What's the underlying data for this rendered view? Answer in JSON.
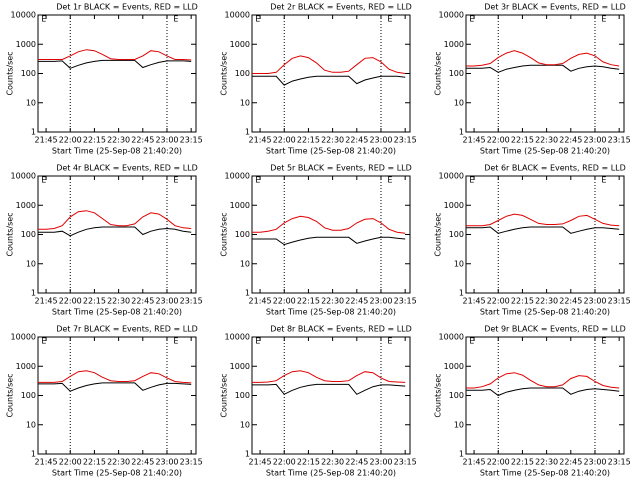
{
  "chart_data": [
    {
      "type": "line",
      "title": "Det 1r BLACK = Events, RED = LLD",
      "x_label": "Start Time (25-Sep-08 21:40:20)",
      "y_label": "Counts/sec",
      "log_y": true,
      "x": [
        "21:40",
        "21:45",
        "21:50",
        "21:55",
        "22:00",
        "22:05",
        "22:10",
        "22:15",
        "22:20",
        "22:25",
        "22:30",
        "22:35",
        "22:40",
        "22:45",
        "22:50",
        "22:55",
        "23:00",
        "23:05",
        "23:10",
        "23:15"
      ],
      "xlim": [
        "21:40",
        "23:18"
      ],
      "xticks": [
        "21:45",
        "22:00",
        "22:15",
        "22:30",
        "22:45",
        "23:00",
        "23:15"
      ],
      "ylim": [
        1,
        10000
      ],
      "yticks": [
        1,
        10,
        100,
        1000,
        10000
      ],
      "vlines": [
        "22:00",
        "23:00"
      ],
      "annotations": [
        {
          "text": "E",
          "x": "21:42"
        },
        {
          "text": "E",
          "x": "23:04"
        }
      ],
      "series": [
        {
          "color": "#000000",
          "values": [
            260,
            260,
            260,
            270,
            150,
            190,
            230,
            260,
            280,
            280,
            280,
            280,
            280,
            160,
            200,
            240,
            270,
            270,
            270,
            260
          ]
        },
        {
          "color": "#e00000",
          "values": [
            300,
            300,
            300,
            300,
            400,
            550,
            650,
            600,
            450,
            320,
            300,
            300,
            300,
            400,
            600,
            550,
            400,
            300,
            300,
            290
          ]
        }
      ]
    },
    {
      "type": "line",
      "title": "Det 2r BLACK = Events, RED = LLD",
      "x_label": "Start Time (25-Sep-08 21:40:20)",
      "y_label": "Counts/sec",
      "log_y": true,
      "x": [
        "21:40",
        "21:45",
        "21:50",
        "21:55",
        "22:00",
        "22:05",
        "22:10",
        "22:15",
        "22:20",
        "22:25",
        "22:30",
        "22:35",
        "22:40",
        "22:45",
        "22:50",
        "22:55",
        "23:00",
        "23:05",
        "23:10",
        "23:15"
      ],
      "xlim": [
        "21:40",
        "23:18"
      ],
      "xticks": [
        "21:45",
        "22:00",
        "22:15",
        "22:30",
        "22:45",
        "23:00",
        "23:15"
      ],
      "ylim": [
        1,
        10000
      ],
      "yticks": [
        1,
        10,
        100,
        1000,
        10000
      ],
      "vlines": [
        "22:00",
        "23:00"
      ],
      "annotations": [
        {
          "text": "E",
          "x": "21:42"
        },
        {
          "text": "E",
          "x": "23:04"
        }
      ],
      "series": [
        {
          "color": "#000000",
          "values": [
            80,
            80,
            80,
            80,
            40,
            55,
            65,
            75,
            80,
            80,
            80,
            80,
            80,
            45,
            60,
            70,
            80,
            80,
            80,
            75
          ]
        },
        {
          "color": "#e00000",
          "values": [
            100,
            100,
            100,
            110,
            200,
            330,
            400,
            350,
            230,
            130,
            110,
            110,
            120,
            200,
            330,
            350,
            250,
            140,
            110,
            100
          ]
        }
      ]
    },
    {
      "type": "line",
      "title": "Det 3r BLACK = Events, RED = LLD",
      "x_label": "Start Time (25-Sep-08 21:40:20)",
      "y_label": "Counts/sec",
      "log_y": true,
      "x": [
        "21:40",
        "21:45",
        "21:50",
        "21:55",
        "22:00",
        "22:05",
        "22:10",
        "22:15",
        "22:20",
        "22:25",
        "22:30",
        "22:35",
        "22:40",
        "22:45",
        "22:50",
        "22:55",
        "23:00",
        "23:05",
        "23:10",
        "23:15"
      ],
      "xlim": [
        "21:40",
        "23:18"
      ],
      "xticks": [
        "21:45",
        "22:00",
        "22:15",
        "22:30",
        "22:45",
        "23:00",
        "23:15"
      ],
      "ylim": [
        1,
        10000
      ],
      "yticks": [
        1,
        10,
        100,
        1000,
        10000
      ],
      "vlines": [
        "22:00",
        "23:00"
      ],
      "annotations": [
        {
          "text": "E",
          "x": "21:42"
        },
        {
          "text": "E",
          "x": "23:04"
        }
      ],
      "series": [
        {
          "color": "#000000",
          "values": [
            150,
            150,
            150,
            160,
            110,
            140,
            160,
            180,
            190,
            190,
            190,
            190,
            190,
            120,
            150,
            170,
            180,
            170,
            150,
            140
          ]
        },
        {
          "color": "#e00000",
          "values": [
            180,
            180,
            190,
            220,
            350,
            500,
            600,
            500,
            350,
            230,
            200,
            200,
            220,
            330,
            450,
            500,
            400,
            250,
            200,
            180
          ]
        }
      ]
    },
    {
      "type": "line",
      "title": "Det 4r BLACK = Events, RED = LLD",
      "x_label": "Start Time (25-Sep-08 21:40:20)",
      "y_label": "Counts/sec",
      "log_y": true,
      "x": [
        "21:40",
        "21:45",
        "21:50",
        "21:55",
        "22:00",
        "22:05",
        "22:10",
        "22:15",
        "22:20",
        "22:25",
        "22:30",
        "22:35",
        "22:40",
        "22:45",
        "22:50",
        "22:55",
        "23:00",
        "23:05",
        "23:10",
        "23:15"
      ],
      "xlim": [
        "21:40",
        "23:18"
      ],
      "xticks": [
        "21:45",
        "22:00",
        "22:15",
        "22:30",
        "22:45",
        "23:00",
        "23:15"
      ],
      "ylim": [
        1,
        10000
      ],
      "yticks": [
        1,
        10,
        100,
        1000,
        10000
      ],
      "vlines": [
        "22:00",
        "23:00"
      ],
      "annotations": [
        {
          "text": "E",
          "x": "21:42"
        },
        {
          "text": "E",
          "x": "23:04"
        }
      ],
      "series": [
        {
          "color": "#000000",
          "values": [
            120,
            120,
            120,
            130,
            90,
            120,
            150,
            170,
            180,
            180,
            180,
            180,
            180,
            100,
            130,
            150,
            160,
            150,
            130,
            120
          ]
        },
        {
          "color": "#e00000",
          "values": [
            150,
            150,
            160,
            200,
            400,
            600,
            650,
            550,
            350,
            220,
            200,
            200,
            230,
            400,
            550,
            500,
            330,
            200,
            170,
            160
          ]
        }
      ]
    },
    {
      "type": "line",
      "title": "Det 5r BLACK = Events, RED = LLD",
      "x_label": "Start Time (25-Sep-08 21:40:20)",
      "y_label": "Counts/sec",
      "log_y": true,
      "x": [
        "21:40",
        "21:45",
        "21:50",
        "21:55",
        "22:00",
        "22:05",
        "22:10",
        "22:15",
        "22:20",
        "22:25",
        "22:30",
        "22:35",
        "22:40",
        "22:45",
        "22:50",
        "22:55",
        "23:00",
        "23:05",
        "23:10",
        "23:15"
      ],
      "xlim": [
        "21:40",
        "23:18"
      ],
      "xticks": [
        "21:45",
        "22:00",
        "22:15",
        "22:30",
        "22:45",
        "23:00",
        "23:15"
      ],
      "ylim": [
        1,
        10000
      ],
      "yticks": [
        1,
        10,
        100,
        1000,
        10000
      ],
      "vlines": [
        "22:00",
        "23:00"
      ],
      "annotations": [
        {
          "text": "E",
          "x": "21:42"
        },
        {
          "text": "E",
          "x": "23:04"
        }
      ],
      "series": [
        {
          "color": "#000000",
          "values": [
            70,
            70,
            70,
            70,
            45,
            55,
            65,
            75,
            80,
            80,
            80,
            80,
            80,
            50,
            60,
            70,
            80,
            80,
            75,
            70
          ]
        },
        {
          "color": "#e00000",
          "values": [
            120,
            120,
            130,
            150,
            250,
            350,
            420,
            380,
            280,
            170,
            140,
            140,
            160,
            250,
            330,
            350,
            250,
            150,
            120,
            110
          ]
        }
      ]
    },
    {
      "type": "line",
      "title": "Det 6r BLACK = Events, RED = LLD",
      "x_label": "Start Time (25-Sep-08 21:40:20)",
      "y_label": "Counts/sec",
      "log_y": true,
      "x": [
        "21:40",
        "21:45",
        "21:50",
        "21:55",
        "22:00",
        "22:05",
        "22:10",
        "22:15",
        "22:20",
        "22:25",
        "22:30",
        "22:35",
        "22:40",
        "22:45",
        "22:50",
        "22:55",
        "23:00",
        "23:05",
        "23:10",
        "23:15"
      ],
      "xlim": [
        "21:40",
        "23:18"
      ],
      "xticks": [
        "21:45",
        "22:00",
        "22:15",
        "22:30",
        "22:45",
        "23:00",
        "23:15"
      ],
      "ylim": [
        1,
        10000
      ],
      "yticks": [
        1,
        10,
        100,
        1000,
        10000
      ],
      "vlines": [
        "22:00",
        "23:00"
      ],
      "annotations": [
        {
          "text": "E",
          "x": "21:42"
        },
        {
          "text": "E",
          "x": "23:04"
        }
      ],
      "series": [
        {
          "color": "#000000",
          "values": [
            170,
            170,
            170,
            180,
            110,
            130,
            150,
            170,
            180,
            180,
            180,
            180,
            180,
            110,
            130,
            150,
            170,
            170,
            160,
            150
          ]
        },
        {
          "color": "#e00000",
          "values": [
            200,
            200,
            200,
            220,
            300,
            420,
            500,
            450,
            330,
            240,
            220,
            220,
            230,
            300,
            420,
            450,
            330,
            240,
            210,
            200
          ]
        }
      ]
    },
    {
      "type": "line",
      "title": "Det 7r BLACK = Events, RED = LLD",
      "x_label": "Start Time (25-Sep-08 21:40:20)",
      "y_label": "Counts/sec",
      "log_y": true,
      "x": [
        "21:40",
        "21:45",
        "21:50",
        "21:55",
        "22:00",
        "22:05",
        "22:10",
        "22:15",
        "22:20",
        "22:25",
        "22:30",
        "22:35",
        "22:40",
        "22:45",
        "22:50",
        "22:55",
        "23:00",
        "23:05",
        "23:10",
        "23:15"
      ],
      "xlim": [
        "21:40",
        "23:18"
      ],
      "xticks": [
        "21:45",
        "22:00",
        "22:15",
        "22:30",
        "22:45",
        "23:00",
        "23:15"
      ],
      "ylim": [
        1,
        10000
      ],
      "yticks": [
        1,
        10,
        100,
        1000,
        10000
      ],
      "vlines": [
        "22:00",
        "23:00"
      ],
      "annotations": [
        {
          "text": "E",
          "x": "21:42"
        },
        {
          "text": "E",
          "x": "23:04"
        }
      ],
      "series": [
        {
          "color": "#000000",
          "values": [
            250,
            250,
            250,
            260,
            140,
            180,
            220,
            250,
            270,
            270,
            270,
            270,
            270,
            150,
            190,
            230,
            260,
            260,
            250,
            240
          ]
        },
        {
          "color": "#e00000",
          "values": [
            280,
            280,
            280,
            300,
            450,
            650,
            700,
            600,
            420,
            320,
            300,
            300,
            320,
            450,
            600,
            550,
            400,
            300,
            280,
            270
          ]
        }
      ]
    },
    {
      "type": "line",
      "title": "Det 8r BLACK = Events, RED = LLD",
      "x_label": "Start Time (25-Sep-08 21:40:20)",
      "y_label": "Counts/sec",
      "log_y": true,
      "x": [
        "21:40",
        "21:45",
        "21:50",
        "21:55",
        "22:00",
        "22:05",
        "22:10",
        "22:15",
        "22:20",
        "22:25",
        "22:30",
        "22:35",
        "22:40",
        "22:45",
        "22:50",
        "22:55",
        "23:00",
        "23:05",
        "23:10",
        "23:15"
      ],
      "xlim": [
        "21:40",
        "23:18"
      ],
      "xticks": [
        "21:45",
        "22:00",
        "22:15",
        "22:30",
        "22:45",
        "23:00",
        "23:15"
      ],
      "ylim": [
        1,
        10000
      ],
      "yticks": [
        1,
        10,
        100,
        1000,
        10000
      ],
      "vlines": [
        "22:00",
        "23:00"
      ],
      "annotations": [
        {
          "text": "E",
          "x": "21:42"
        },
        {
          "text": "E",
          "x": "23:04"
        }
      ],
      "series": [
        {
          "color": "#000000",
          "values": [
            230,
            230,
            230,
            240,
            110,
            150,
            190,
            220,
            240,
            240,
            240,
            240,
            240,
            110,
            150,
            200,
            230,
            230,
            220,
            210
          ]
        },
        {
          "color": "#e00000",
          "values": [
            280,
            280,
            290,
            320,
            480,
            650,
            700,
            600,
            420,
            320,
            300,
            300,
            320,
            480,
            650,
            600,
            400,
            300,
            290,
            280
          ]
        }
      ]
    },
    {
      "type": "line",
      "title": "Det 9r BLACK = Events, RED = LLD",
      "x_label": "Start Time (25-Sep-08 21:40:20)",
      "y_label": "Counts/sec",
      "log_y": true,
      "x": [
        "21:40",
        "21:45",
        "21:50",
        "21:55",
        "22:00",
        "22:05",
        "22:10",
        "22:15",
        "22:20",
        "22:25",
        "22:30",
        "22:35",
        "22:40",
        "22:45",
        "22:50",
        "22:55",
        "23:00",
        "23:05",
        "23:10",
        "23:15"
      ],
      "xlim": [
        "21:40",
        "23:18"
      ],
      "xticks": [
        "21:45",
        "22:00",
        "22:15",
        "22:30",
        "22:45",
        "23:00",
        "23:15"
      ],
      "ylim": [
        1,
        10000
      ],
      "yticks": [
        1,
        10,
        100,
        1000,
        10000
      ],
      "vlines": [
        "22:00",
        "23:00"
      ],
      "annotations": [
        {
          "text": "E",
          "x": "21:42"
        },
        {
          "text": "E",
          "x": "23:04"
        }
      ],
      "series": [
        {
          "color": "#000000",
          "values": [
            150,
            150,
            150,
            160,
            100,
            130,
            150,
            170,
            180,
            180,
            180,
            180,
            180,
            110,
            140,
            160,
            170,
            160,
            150,
            140
          ]
        },
        {
          "color": "#e00000",
          "values": [
            180,
            180,
            200,
            250,
            400,
            550,
            600,
            500,
            330,
            230,
            200,
            200,
            230,
            380,
            480,
            450,
            300,
            220,
            190,
            180
          ]
        }
      ]
    }
  ]
}
